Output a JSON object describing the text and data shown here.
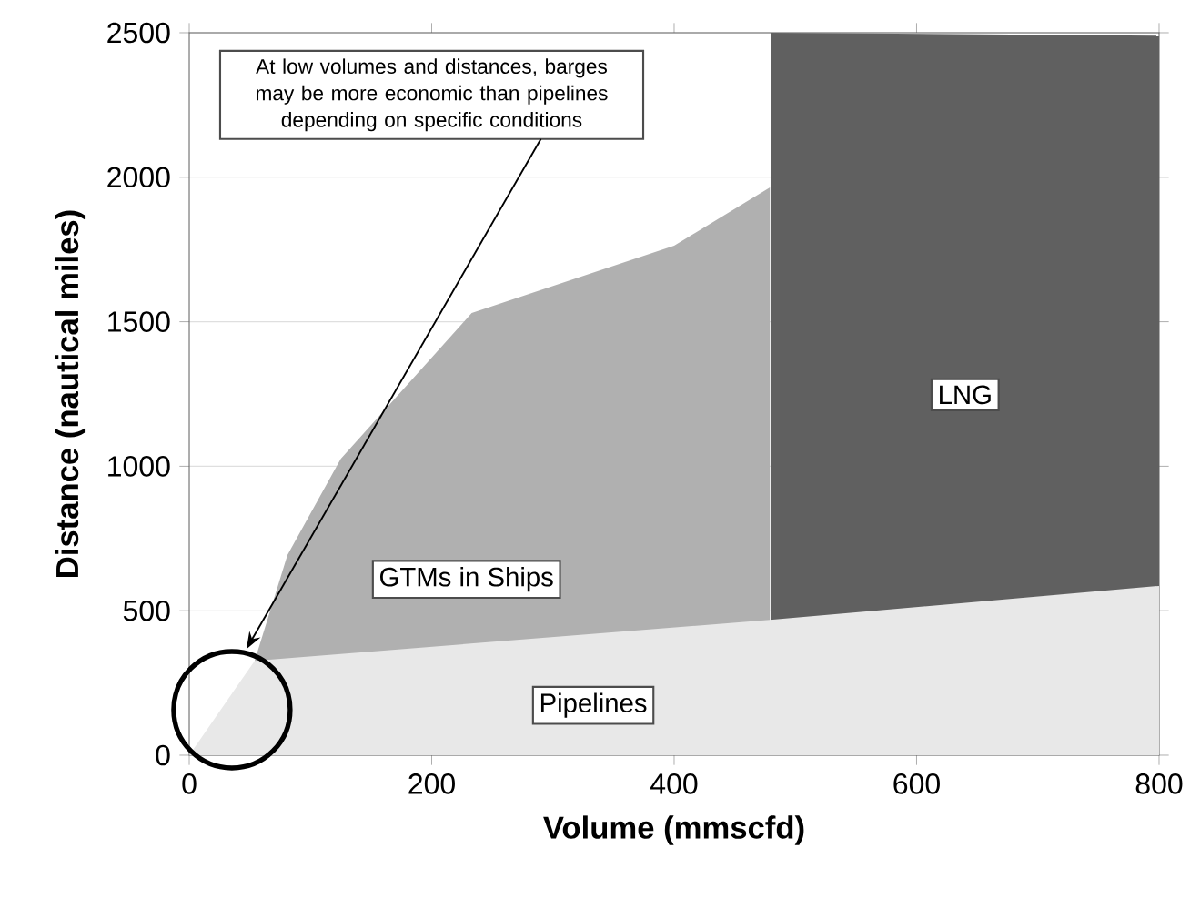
{
  "chart_data": {
    "type": "area",
    "xlabel": "Volume (mmscfd)",
    "ylabel": "Distance (nautical miles)",
    "xlim": [
      0,
      800
    ],
    "ylim": [
      0,
      2500
    ],
    "xticks": [
      0,
      200,
      400,
      600,
      800
    ],
    "yticks": [
      0,
      500,
      1000,
      1500,
      2000,
      2500
    ],
    "grid": "y",
    "annotations": [
      "At low volumes and distances, barges may be more economic than pipelines depending on specific conditions"
    ],
    "series": [
      {
        "name": "GTMs in Ships",
        "color": "#b0b0b0",
        "x": [
          54,
          81,
          125,
          233,
          400,
          479
        ],
        "values": [
          327,
          693,
          1026,
          1530,
          1763,
          1965
        ]
      },
      {
        "name": "LNG",
        "color": "#606060",
        "x": [
          480,
          800
        ],
        "values": [
          2500,
          2490
        ]
      },
      {
        "name": "Pipelines",
        "color": "#e8e8e8",
        "x": [
          0,
          54,
          479,
          800
        ],
        "values": [
          0,
          327,
          468,
          586
        ]
      }
    ]
  }
}
